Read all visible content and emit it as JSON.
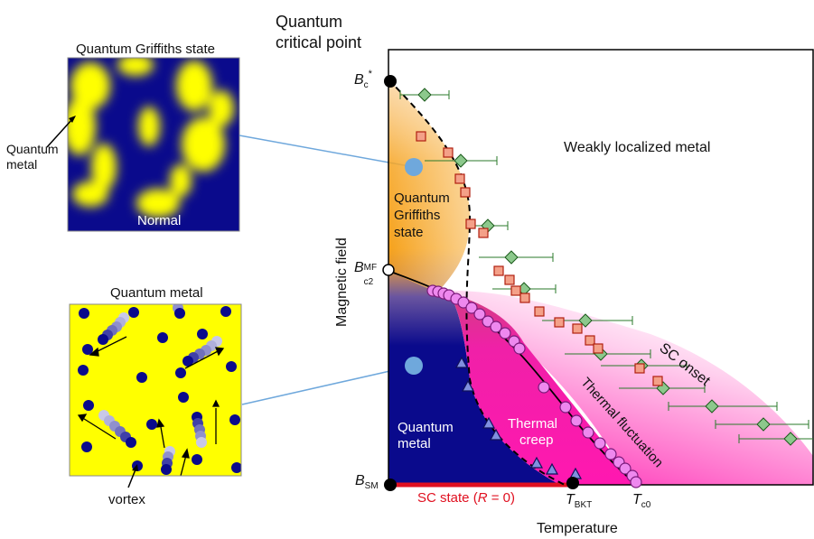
{
  "labels": {
    "qcp_line1": "Quantum",
    "qcp_line2": "critical point",
    "griffiths_title": "Quantum Griffiths state",
    "quantum_metal_side_1": "Quantum",
    "quantum_metal_side_2": "metal",
    "normal": "Normal",
    "qm_title": "Quantum metal",
    "vortex": "vortex",
    "bc_star_main": "B",
    "bc_star_sub": "c",
    "bc_star_sup": "*",
    "bc2_main": "B",
    "bc2_sub": "c2",
    "bc2_sup": "MF",
    "bsm_main": "B",
    "bsm_sub": "SM",
    "ylabel": "Magnetic field",
    "xlabel": "Temperature",
    "weakly_localized": "Weakly localized metal",
    "griffiths_region_1": "Quantum",
    "griffiths_region_2": "Griffiths",
    "griffiths_region_3": "state",
    "qm_region_1": "Quantum",
    "qm_region_2": "metal",
    "thermal_creep_1": "Thermal",
    "thermal_creep_2": "creep",
    "sc_onset": "SC onset",
    "thermal_fluct": "Thermal fluctuation",
    "sc_state_pre": "SC state (",
    "sc_state_r": "R",
    "sc_state_post": " = 0)",
    "tbkt_main": "T",
    "tbkt_sub": "BKT",
    "tc0_main": "T",
    "tc0_sub": "c0"
  },
  "colors": {
    "navy": "#0a0a8c",
    "yellow": "#ffff00",
    "magenta": "#ff18b0",
    "orange": "#f6a21c",
    "red_line": "#e01020",
    "green": "#2a7a2a",
    "marker_blue": "#6fa8dc"
  },
  "chart_data": {
    "type": "scatter",
    "xlabel": "Temperature",
    "ylabel": "Magnetic field",
    "series": []
  }
}
